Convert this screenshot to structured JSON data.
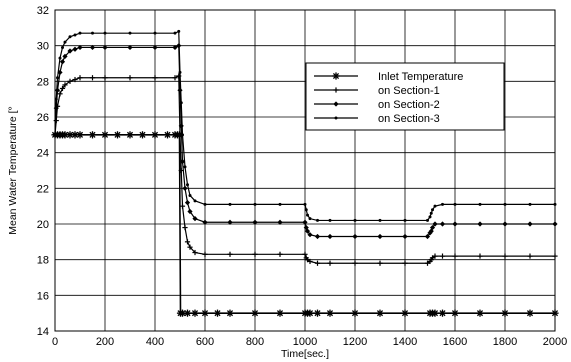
{
  "chart_data": {
    "type": "line",
    "title": "",
    "xlabel": "Time[sec.]",
    "ylabel": "Mean Water Temperature [°",
    "xlim": [
      0,
      2000
    ],
    "ylim": [
      14,
      32
    ],
    "xticks": [
      0,
      200,
      400,
      600,
      800,
      1000,
      1200,
      1400,
      1600,
      1800,
      2000
    ],
    "yticks": [
      14,
      16,
      18,
      20,
      22,
      24,
      26,
      28,
      30,
      32
    ],
    "grid": true,
    "legend_position": "upper-right",
    "series": [
      {
        "name": "Inlet Temperature",
        "marker": "asterisk",
        "points": [
          [
            0,
            25
          ],
          [
            10,
            25
          ],
          [
            20,
            25
          ],
          [
            30,
            25
          ],
          [
            40,
            25
          ],
          [
            60,
            25
          ],
          [
            80,
            25
          ],
          [
            100,
            25
          ],
          [
            150,
            25
          ],
          [
            200,
            25
          ],
          [
            250,
            25
          ],
          [
            300,
            25
          ],
          [
            350,
            25
          ],
          [
            400,
            25
          ],
          [
            450,
            25
          ],
          [
            480,
            25
          ],
          [
            490,
            25
          ],
          [
            498,
            25
          ],
          [
            502,
            15
          ],
          [
            510,
            15
          ],
          [
            530,
            15
          ],
          [
            560,
            15
          ],
          [
            600,
            15
          ],
          [
            650,
            15
          ],
          [
            700,
            15
          ],
          [
            800,
            15
          ],
          [
            900,
            15
          ],
          [
            1000,
            15
          ],
          [
            1010,
            15
          ],
          [
            1020,
            15
          ],
          [
            1050,
            15
          ],
          [
            1100,
            15
          ],
          [
            1200,
            15
          ],
          [
            1300,
            15
          ],
          [
            1400,
            15
          ],
          [
            1500,
            15
          ],
          [
            1510,
            15
          ],
          [
            1520,
            15
          ],
          [
            1550,
            15
          ],
          [
            1600,
            15
          ],
          [
            1700,
            15
          ],
          [
            1800,
            15
          ],
          [
            1900,
            15
          ],
          [
            2000,
            15
          ]
        ]
      },
      {
        "name": "on Section-1",
        "marker": "plus",
        "points": [
          [
            0,
            25
          ],
          [
            5,
            25.8
          ],
          [
            10,
            26.6
          ],
          [
            20,
            27.3
          ],
          [
            30,
            27.6
          ],
          [
            40,
            27.8
          ],
          [
            60,
            28.0
          ],
          [
            80,
            28.1
          ],
          [
            100,
            28.2
          ],
          [
            150,
            28.2
          ],
          [
            200,
            28.2
          ],
          [
            300,
            28.2
          ],
          [
            400,
            28.2
          ],
          [
            480,
            28.2
          ],
          [
            495,
            28.3
          ],
          [
            500,
            25
          ],
          [
            505,
            23.0
          ],
          [
            510,
            21.0
          ],
          [
            520,
            19.8
          ],
          [
            530,
            19.0
          ],
          [
            540,
            18.7
          ],
          [
            560,
            18.4
          ],
          [
            600,
            18.3
          ],
          [
            700,
            18.3
          ],
          [
            800,
            18.3
          ],
          [
            900,
            18.3
          ],
          [
            1000,
            18.3
          ],
          [
            1005,
            18.1
          ],
          [
            1010,
            18.0
          ],
          [
            1020,
            17.9
          ],
          [
            1050,
            17.8
          ],
          [
            1100,
            17.8
          ],
          [
            1200,
            17.8
          ],
          [
            1300,
            17.8
          ],
          [
            1400,
            17.8
          ],
          [
            1490,
            17.8
          ],
          [
            1500,
            17.9
          ],
          [
            1505,
            18.0
          ],
          [
            1510,
            18.1
          ],
          [
            1520,
            18.2
          ],
          [
            1550,
            18.2
          ],
          [
            1600,
            18.2
          ],
          [
            1700,
            18.2
          ],
          [
            1800,
            18.2
          ],
          [
            1900,
            18.2
          ],
          [
            2000,
            18.2
          ]
        ]
      },
      {
        "name": "on Section-2",
        "marker": "diamond",
        "points": [
          [
            0,
            25
          ],
          [
            5,
            26.5
          ],
          [
            10,
            27.5
          ],
          [
            20,
            28.5
          ],
          [
            30,
            29.1
          ],
          [
            40,
            29.4
          ],
          [
            60,
            29.7
          ],
          [
            80,
            29.8
          ],
          [
            100,
            29.9
          ],
          [
            150,
            29.9
          ],
          [
            200,
            29.9
          ],
          [
            300,
            29.9
          ],
          [
            400,
            29.9
          ],
          [
            480,
            29.9
          ],
          [
            495,
            30.0
          ],
          [
            500,
            27.5
          ],
          [
            505,
            25.5
          ],
          [
            510,
            23.5
          ],
          [
            520,
            22.0
          ],
          [
            530,
            21.2
          ],
          [
            540,
            20.7
          ],
          [
            560,
            20.3
          ],
          [
            600,
            20.1
          ],
          [
            700,
            20.1
          ],
          [
            800,
            20.1
          ],
          [
            900,
            20.1
          ],
          [
            1000,
            20.1
          ],
          [
            1005,
            19.8
          ],
          [
            1010,
            19.6
          ],
          [
            1020,
            19.4
          ],
          [
            1050,
            19.3
          ],
          [
            1100,
            19.3
          ],
          [
            1200,
            19.3
          ],
          [
            1300,
            19.3
          ],
          [
            1400,
            19.3
          ],
          [
            1490,
            19.3
          ],
          [
            1500,
            19.5
          ],
          [
            1505,
            19.6
          ],
          [
            1510,
            19.8
          ],
          [
            1520,
            20.0
          ],
          [
            1550,
            20.0
          ],
          [
            1600,
            20.0
          ],
          [
            1700,
            20.0
          ],
          [
            1800,
            20.0
          ],
          [
            1900,
            20.0
          ],
          [
            2000,
            20.0
          ]
        ]
      },
      {
        "name": "on Section-3",
        "marker": "dot",
        "points": [
          [
            0,
            25
          ],
          [
            5,
            27.0
          ],
          [
            10,
            28.2
          ],
          [
            20,
            29.3
          ],
          [
            30,
            29.9
          ],
          [
            40,
            30.2
          ],
          [
            60,
            30.5
          ],
          [
            80,
            30.6
          ],
          [
            100,
            30.7
          ],
          [
            150,
            30.7
          ],
          [
            200,
            30.7
          ],
          [
            300,
            30.7
          ],
          [
            400,
            30.7
          ],
          [
            480,
            30.7
          ],
          [
            495,
            30.8
          ],
          [
            500,
            28.5
          ],
          [
            505,
            26.8
          ],
          [
            510,
            25.0
          ],
          [
            520,
            23.2
          ],
          [
            530,
            22.2
          ],
          [
            540,
            21.6
          ],
          [
            560,
            21.3
          ],
          [
            600,
            21.1
          ],
          [
            700,
            21.1
          ],
          [
            800,
            21.1
          ],
          [
            900,
            21.1
          ],
          [
            1000,
            21.1
          ],
          [
            1005,
            20.8
          ],
          [
            1010,
            20.5
          ],
          [
            1020,
            20.3
          ],
          [
            1050,
            20.2
          ],
          [
            1100,
            20.2
          ],
          [
            1200,
            20.2
          ],
          [
            1300,
            20.2
          ],
          [
            1400,
            20.2
          ],
          [
            1490,
            20.2
          ],
          [
            1500,
            20.4
          ],
          [
            1505,
            20.6
          ],
          [
            1510,
            20.8
          ],
          [
            1520,
            21.0
          ],
          [
            1550,
            21.1
          ],
          [
            1600,
            21.1
          ],
          [
            1700,
            21.1
          ],
          [
            1800,
            21.1
          ],
          [
            1900,
            21.1
          ],
          [
            2000,
            21.1
          ]
        ]
      }
    ]
  }
}
